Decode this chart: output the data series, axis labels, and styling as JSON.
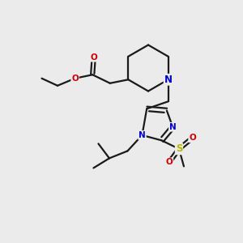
{
  "bg_color": "#ebebeb",
  "bond_color": "#1a1a1a",
  "N_color": "#0000cc",
  "O_color": "#cc0000",
  "S_color": "#b8b800",
  "line_width": 1.6,
  "font_size_atom": 8.5,
  "font_size_small": 7.5,
  "xlim": [
    0,
    10
  ],
  "ylim": [
    0,
    10
  ]
}
